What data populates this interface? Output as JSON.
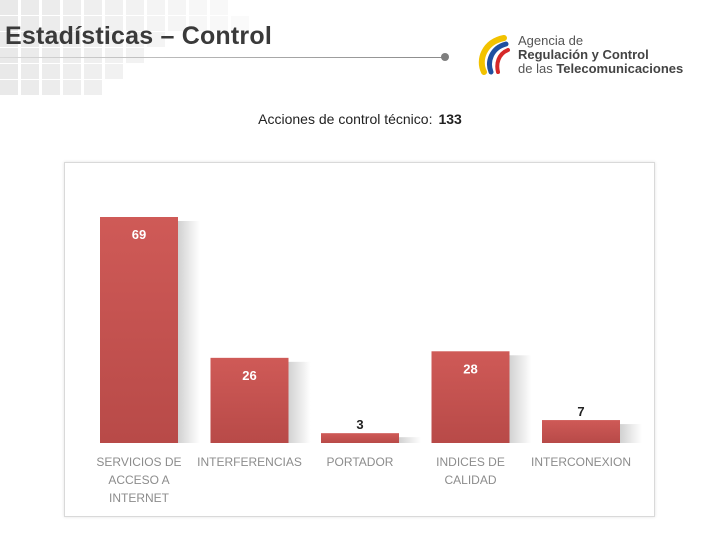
{
  "header": {
    "title": "Estadísticas – Control"
  },
  "logo": {
    "line1": "Agencia de",
    "line2": "Regulación y Control",
    "line3_prefix": "de las ",
    "line3_bold": "Telecomunicaciones",
    "colors": [
      "#f2c200",
      "#1f4fa0",
      "#d62828"
    ]
  },
  "summary": {
    "label": "Acciones de control técnico:",
    "value": "133"
  },
  "colors": {
    "bar": "#b84a48",
    "bar_light": "#cf5a57",
    "label_light": "#ffffff",
    "label_dark": "#222222",
    "axis_text": "#8c8c8c"
  },
  "chart_data": {
    "type": "bar",
    "title": "",
    "xlabel": "",
    "ylabel": "",
    "categories": [
      [
        "SERVICIOS DE",
        "ACCESO A",
        "INTERNET"
      ],
      [
        "INTERFERENCIAS"
      ],
      [
        "PORTADOR"
      ],
      [
        "INDICES DE",
        "CALIDAD"
      ],
      [
        "INTERCONEXION"
      ]
    ],
    "values": [
      69,
      26,
      3,
      28,
      7
    ],
    "data_labels": [
      "69",
      "26",
      "3",
      "28",
      "7"
    ],
    "ylim": [
      0,
      69
    ],
    "grid": false,
    "legend": "none"
  }
}
